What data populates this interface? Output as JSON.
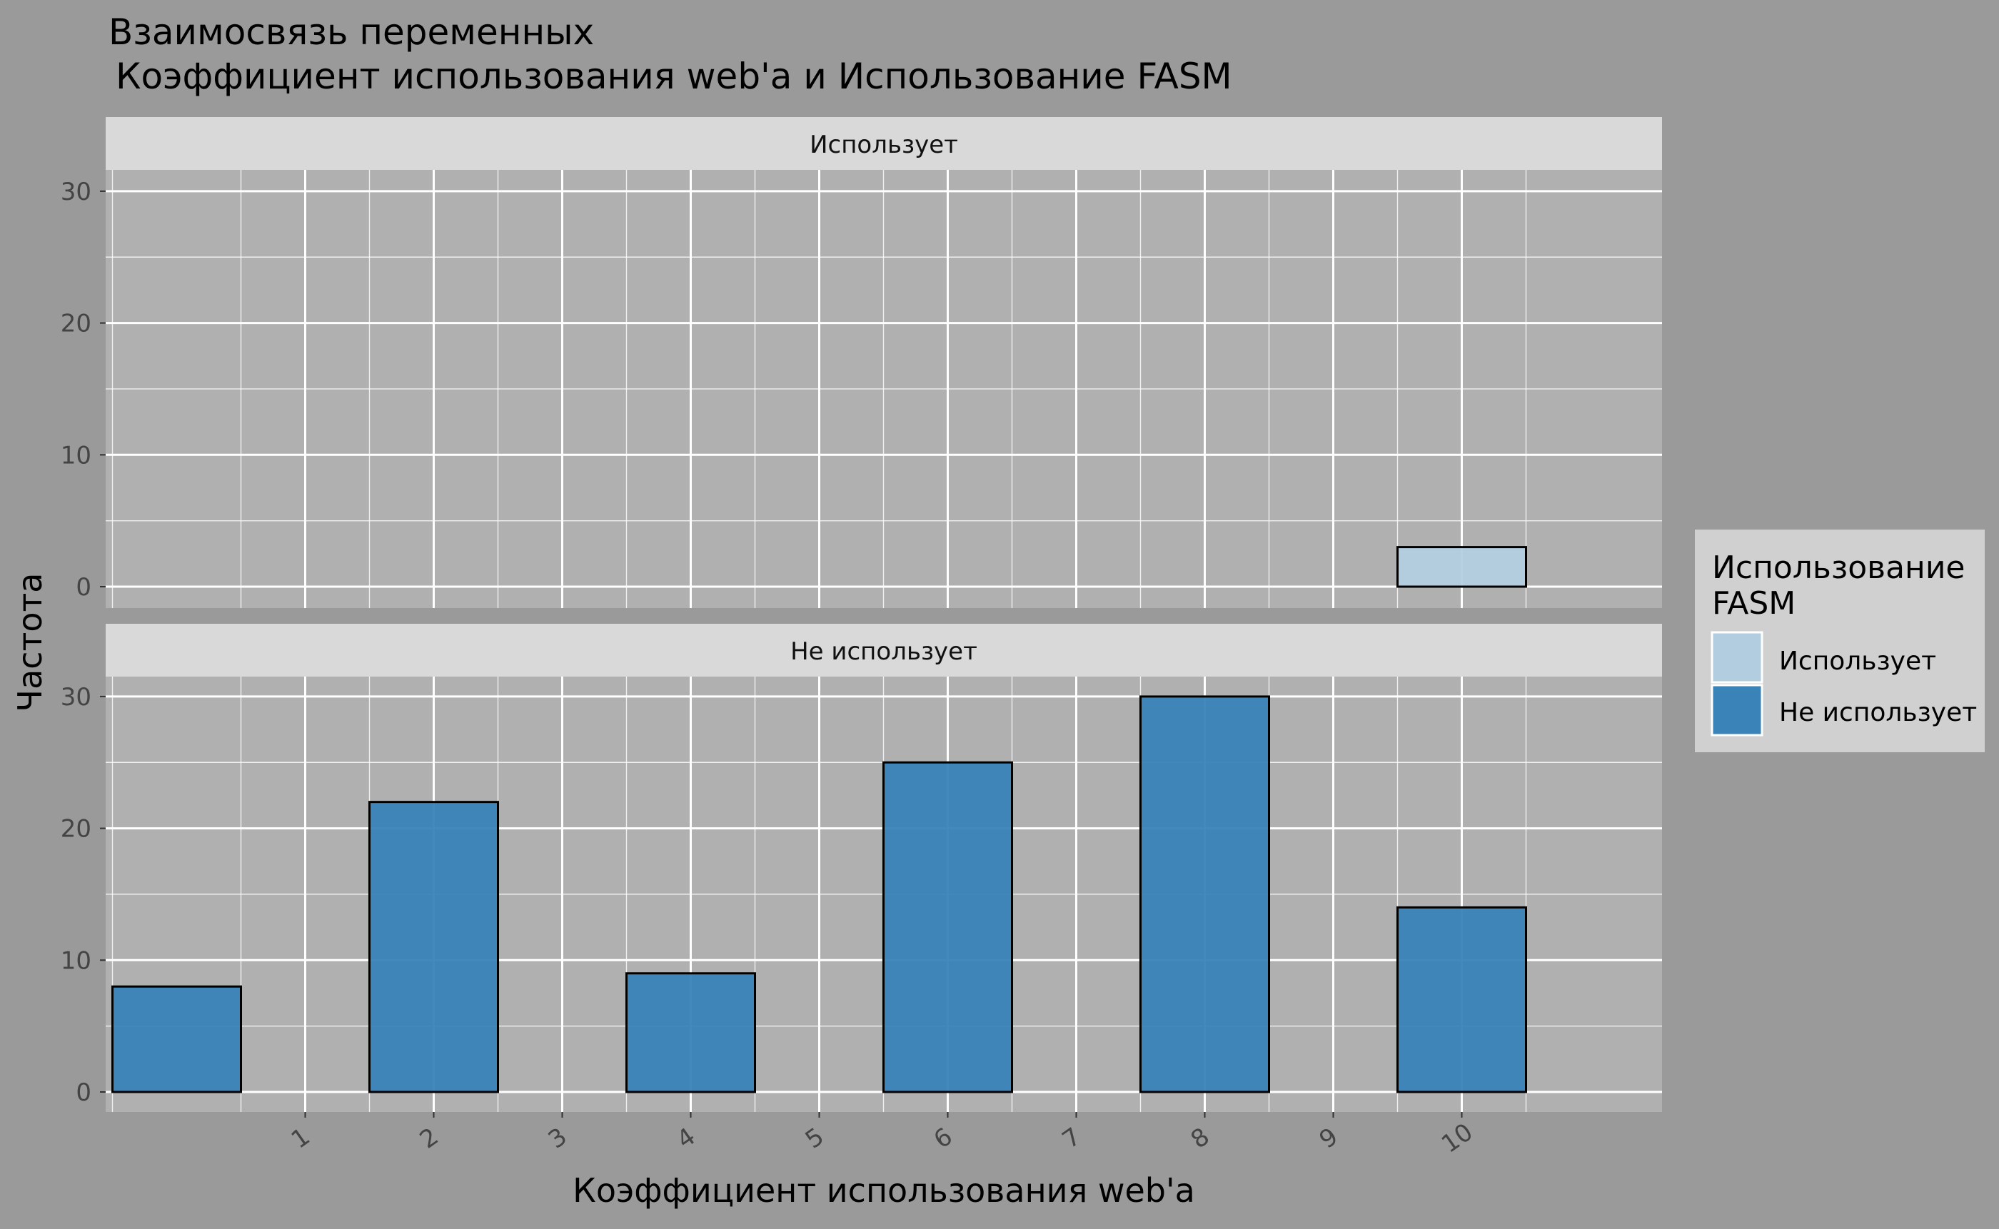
{
  "chart_data": {
    "type": "bar",
    "title_line1": "Взаимосвязь переменных",
    "title_line2": "Коэффициент использования web'a и Использование FASM",
    "xlabel": "Коэффициент использования web'a",
    "ylabel": "Частота",
    "x_ticks": [
      "1",
      "2",
      "3",
      "4",
      "5",
      "6",
      "7",
      "8",
      "9",
      "10"
    ],
    "y_ticks": [
      0,
      10,
      20,
      30
    ],
    "ylim": [
      0,
      30
    ],
    "grid": true,
    "legend": {
      "title_line1": "Использование",
      "title_line2": "FASM",
      "placement": "right",
      "items": [
        {
          "label": "Использует",
          "color": "#b3cde0"
        },
        {
          "label": "Не использует",
          "color": "#3a83b8"
        }
      ]
    },
    "facets": [
      {
        "label": "Использует",
        "color": "#b3cde0",
        "bars": [
          {
            "x": 0,
            "value": 0
          },
          {
            "x": 2,
            "value": 0
          },
          {
            "x": 4,
            "value": 0
          },
          {
            "x": 6,
            "value": 0
          },
          {
            "x": 8,
            "value": 0
          },
          {
            "x": 10,
            "value": 3
          }
        ]
      },
      {
        "label": "Не использует",
        "color": "#3a83b8",
        "bars": [
          {
            "x": 0,
            "value": 8
          },
          {
            "x": 2,
            "value": 22
          },
          {
            "x": 4,
            "value": 9
          },
          {
            "x": 6,
            "value": 25
          },
          {
            "x": 8,
            "value": 30
          },
          {
            "x": 10,
            "value": 14
          }
        ]
      }
    ]
  },
  "colors": {
    "background": "#9a9a9a",
    "panel": "#b0b0b0",
    "strip": "#d9d9d9",
    "grid": "#ffffff"
  }
}
